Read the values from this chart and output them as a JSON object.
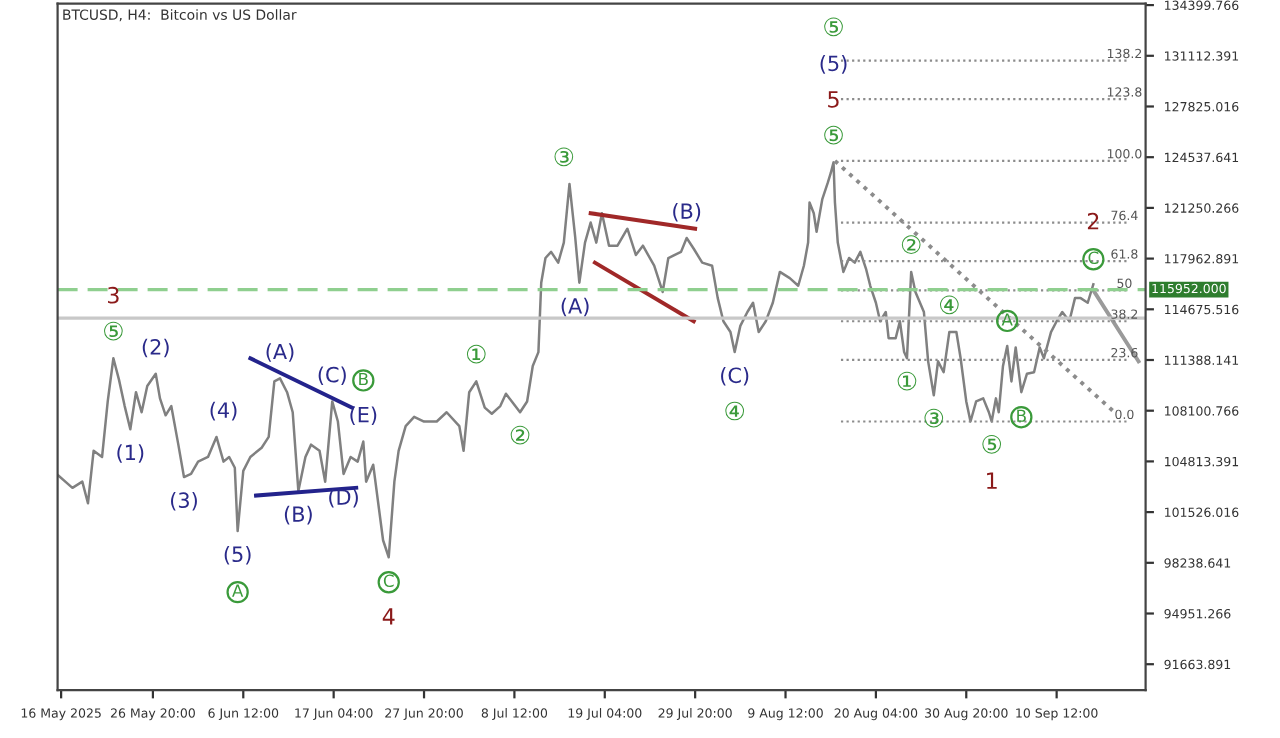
{
  "chart_data": {
    "type": "line",
    "title": "BTCUSD, H4:  Bitcoin vs US Dollar",
    "xlim": [
      "2025-05-15T14:00",
      "2025-09-21T00:00"
    ],
    "xticks": [
      {
        "value": "2025-05-16T00:00",
        "label": "16 May 2025"
      },
      {
        "value": "2025-05-26T20:00",
        "label": "26 May 20:00"
      },
      {
        "value": "2025-06-06T12:00",
        "label": "6 Jun 12:00"
      },
      {
        "value": "2025-06-17T04:00",
        "label": "17 Jun 04:00"
      },
      {
        "value": "2025-06-27T20:00",
        "label": "27 Jun 20:00"
      },
      {
        "value": "2025-07-08T12:00",
        "label": "8 Jul 12:00"
      },
      {
        "value": "2025-07-19T04:00",
        "label": "19 Jul 04:00"
      },
      {
        "value": "2025-07-29T20:00",
        "label": "29 Jul 20:00"
      },
      {
        "value": "2025-08-09T12:00",
        "label": "9 Aug 12:00"
      },
      {
        "value": "2025-08-20T04:00",
        "label": "20 Aug 04:00"
      },
      {
        "value": "2025-08-30T20:00",
        "label": "30 Aug 20:00"
      },
      {
        "value": "2025-09-10T12:00",
        "label": "10 Sep 12:00"
      }
    ],
    "ylim": [
      89990,
      134490
    ],
    "yticks": [
      134399.766,
      131112.391,
      127825.016,
      124537.641,
      121250.266,
      117962.891,
      114675.516,
      111388.141,
      108100.766,
      104813.391,
      101526.016,
      98238.641,
      94951.266,
      91663.891
    ],
    "grid": false,
    "legend": false,
    "marker": "none",
    "series": [
      {
        "color": "#808080",
        "line_style": "solid",
        "x": [
          "2025-05-15T16:00",
          "2025-05-17T08:00",
          "2025-05-18T12:00",
          "2025-05-19T04:00",
          "2025-05-19T20:00",
          "2025-05-20T20:00",
          "2025-05-21T12:00",
          "2025-05-22T04:00",
          "2025-05-22T20:00",
          "2025-05-23T12:00",
          "2025-05-24T04:00",
          "2025-05-24T20:00",
          "2025-05-25T12:00",
          "2025-05-26T04:00",
          "2025-05-27T04:00",
          "2025-05-27T16:00",
          "2025-05-28T08:00",
          "2025-05-29T00:00",
          "2025-05-29T20:00",
          "2025-05-30T12:00",
          "2025-05-31T08:00",
          "2025-06-01T04:00",
          "2025-06-02T08:00",
          "2025-06-03T08:00",
          "2025-06-04T04:00",
          "2025-06-04T20:00",
          "2025-06-05T12:00",
          "2025-06-05T20:00",
          "2025-06-06T12:00",
          "2025-06-07T08:00",
          "2025-06-08T16:00",
          "2025-06-09T12:00",
          "2025-06-10T04:00",
          "2025-06-10T20:00",
          "2025-06-11T16:00",
          "2025-06-12T08:00",
          "2025-06-13T00:00",
          "2025-06-13T20:00",
          "2025-06-14T12:00",
          "2025-06-15T12:00",
          "2025-06-16T04:00",
          "2025-06-17T00:00",
          "2025-06-17T16:00",
          "2025-06-18T08:00",
          "2025-06-19T04:00",
          "2025-06-20T00:00",
          "2025-06-20T16:00",
          "2025-06-21T00:00",
          "2025-06-21T20:00",
          "2025-06-23T00:00",
          "2025-06-23T16:00",
          "2025-06-24T08:00",
          "2025-06-24T20:00",
          "2025-06-25T16:00",
          "2025-06-26T16:00",
          "2025-06-27T20:00",
          "2025-06-29T08:00",
          "2025-06-30T12:00",
          "2025-07-02T00:00",
          "2025-07-02T12:00",
          "2025-07-03T04:00",
          "2025-07-04T00:00",
          "2025-07-05T00:00",
          "2025-07-05T20:00",
          "2025-07-06T20:00",
          "2025-07-07T12:00",
          "2025-07-08T08:00",
          "2025-07-09T04:00",
          "2025-07-10T00:00",
          "2025-07-10T16:00",
          "2025-07-11T08:00",
          "2025-07-11T16:00",
          "2025-07-12T04:00",
          "2025-07-12T20:00",
          "2025-07-13T16:00",
          "2025-07-14T08:00",
          "2025-07-15T00:00",
          "2025-07-15T16:00",
          "2025-07-16T04:00",
          "2025-07-16T20:00",
          "2025-07-17T12:00",
          "2025-07-18T04:00",
          "2025-07-18T20:00",
          "2025-07-19T16:00",
          "2025-07-20T16:00",
          "2025-07-21T20:00",
          "2025-07-22T20:00",
          "2025-07-23T16:00",
          "2025-07-25T00:00",
          "2025-07-26T00:00",
          "2025-07-26T16:00",
          "2025-07-28T04:00",
          "2025-07-28T20:00",
          "2025-07-29T16:00",
          "2025-07-30T16:00",
          "2025-07-31T20:00",
          "2025-08-01T12:00",
          "2025-08-02T04:00",
          "2025-08-03T00:00",
          "2025-08-03T12:00",
          "2025-08-04T04:00",
          "2025-08-05T00:00",
          "2025-08-05T16:00",
          "2025-08-06T08:00",
          "2025-08-07T04:00",
          "2025-08-08T00:00",
          "2025-08-08T20:00",
          "2025-08-10T00:00",
          "2025-08-11T00:00",
          "2025-08-11T16:00",
          "2025-08-12T04:00",
          "2025-08-12T08:00",
          "2025-08-12T20:00",
          "2025-08-13T04:00",
          "2025-08-13T20:00",
          "2025-08-14T12:00",
          "2025-08-14T20:00",
          "2025-08-15T04:00",
          "2025-08-15T08:00",
          "2025-08-15T16:00",
          "2025-08-16T08:00",
          "2025-08-17T00:00",
          "2025-08-17T16:00",
          "2025-08-18T08:00",
          "2025-08-19T00:00",
          "2025-08-19T12:00",
          "2025-08-20T04:00",
          "2025-08-20T16:00",
          "2025-08-21T08:00",
          "2025-08-21T16:00",
          "2025-08-22T12:00",
          "2025-08-23T00:00",
          "2025-08-23T12:00",
          "2025-08-23T20:00",
          "2025-08-24T08:00",
          "2025-08-24T20:00",
          "2025-08-25T20:00",
          "2025-08-26T08:00",
          "2025-08-27T00:00",
          "2025-08-27T12:00",
          "2025-08-28T04:00",
          "2025-08-28T20:00",
          "2025-08-29T16:00",
          "2025-08-30T04:00",
          "2025-08-30T20:00",
          "2025-08-31T08:00",
          "2025-09-01T00:00",
          "2025-09-01T20:00",
          "2025-09-02T12:00",
          "2025-09-02T20:00",
          "2025-09-03T08:00",
          "2025-09-03T16:00",
          "2025-09-04T04:00",
          "2025-09-04T16:00",
          "2025-09-05T04:00",
          "2025-09-05T16:00",
          "2025-09-06T08:00",
          "2025-09-07T00:00",
          "2025-09-07T20:00",
          "2025-09-08T12:00",
          "2025-09-09T00:00",
          "2025-09-09T20:00",
          "2025-09-10T12:00",
          "2025-09-11T04:00",
          "2025-09-12T00:00",
          "2025-09-12T16:00",
          "2025-09-13T08:00",
          "2025-09-14T04:00",
          "2025-09-14T20:00"
        ],
        "values": [
          103900,
          103100,
          103500,
          102100,
          105500,
          105100,
          108700,
          111500,
          110100,
          108400,
          106900,
          109300,
          108000,
          109700,
          110500,
          108900,
          107800,
          108400,
          105900,
          103800,
          104000,
          104800,
          105100,
          106400,
          104800,
          105100,
          104400,
          100300,
          104200,
          105100,
          105700,
          106400,
          110000,
          110200,
          109300,
          108000,
          102900,
          105100,
          105900,
          105500,
          103500,
          108700,
          107400,
          104000,
          105100,
          104800,
          106100,
          103500,
          104600,
          99700,
          98600,
          103500,
          105500,
          107100,
          107700,
          107400,
          107400,
          108000,
          107100,
          105500,
          109300,
          110000,
          108300,
          107900,
          108400,
          109200,
          108600,
          108000,
          108700,
          111000,
          111900,
          116400,
          118000,
          118400,
          117700,
          119000,
          122800,
          119400,
          116400,
          119000,
          120300,
          119000,
          120900,
          118800,
          118800,
          119900,
          118200,
          118800,
          117500,
          115800,
          118000,
          118400,
          119300,
          118600,
          117700,
          117500,
          115400,
          113900,
          113200,
          111900,
          113600,
          114500,
          115100,
          113200,
          113900,
          115100,
          117100,
          116700,
          116200,
          117500,
          119000,
          121600,
          120900,
          119700,
          121800,
          122900,
          123500,
          124200,
          121600,
          119000,
          117100,
          118000,
          117700,
          118400,
          117300,
          116200,
          115100,
          113900,
          114500,
          112800,
          112800,
          113900,
          111900,
          111500,
          117100,
          115800,
          114500,
          111300,
          109100,
          111300,
          110600,
          113200,
          113200,
          111500,
          108700,
          107400,
          108700,
          108900,
          108000,
          107400,
          108900,
          108000,
          111000,
          112300,
          110000,
          112200,
          109300,
          110500,
          110600,
          112200,
          111500,
          113200,
          113900,
          114500,
          113900,
          115400,
          115400,
          115100,
          116300
        ]
      },
      {
        "color": "#23238c",
        "line_style": "solid",
        "x": [
          "2025-06-07T08:00",
          "2025-06-19T08:00"
        ],
        "values": [
          111500,
          108300
        ]
      },
      {
        "color": "#23238c",
        "line_style": "solid",
        "x": [
          "2025-06-08T00:00",
          "2025-06-19T20:00"
        ],
        "values": [
          102600,
          103100
        ]
      },
      {
        "color": "#a02828",
        "line_style": "solid",
        "x": [
          "2025-07-17T12:00",
          "2025-07-29T20:00"
        ],
        "values": [
          120900,
          119900
        ]
      },
      {
        "color": "#a02828",
        "line_style": "solid",
        "x": [
          "2025-07-18T00:00",
          "2025-07-29T16:00"
        ],
        "values": [
          117700,
          113900
        ]
      },
      {
        "color": "#8c8c8c",
        "line_style": "dotted",
        "x": [
          "2025-08-15T08:00",
          "2025-09-17T08:00"
        ],
        "values": [
          124300,
          108000
        ]
      },
      {
        "color": "#9a9a9a",
        "line_style": "solid",
        "x": [
          "2025-09-14T20:00",
          "2025-09-20T04:00"
        ],
        "values": [
          115900,
          111300
        ]
      }
    ],
    "ref_lines": [
      {
        "axis": "y",
        "value": 130800,
        "color": "#8c8c8c",
        "line_style": "dotted"
      },
      {
        "axis": "y",
        "value": 128300,
        "color": "#8c8c8c",
        "line_style": "dotted"
      },
      {
        "axis": "y",
        "value": 124300,
        "color": "#8c8c8c",
        "line_style": "dotted"
      },
      {
        "axis": "y",
        "value": 120300,
        "color": "#8c8c8c",
        "line_style": "dotted"
      },
      {
        "axis": "y",
        "value": 117800,
        "color": "#8c8c8c",
        "line_style": "dotted"
      },
      {
        "axis": "y",
        "value": 115900,
        "color": "#8c8c8c",
        "line_style": "dotted"
      },
      {
        "axis": "y",
        "value": 113900,
        "color": "#8c8c8c",
        "line_style": "dotted"
      },
      {
        "axis": "y",
        "value": 111400,
        "color": "#8c8c8c",
        "line_style": "dotted"
      },
      {
        "axis": "y",
        "value": 107400,
        "color": "#8c8c8c",
        "line_style": "dotted"
      },
      {
        "axis": "y",
        "value": 115952,
        "label": "115952.000",
        "color": "#8fcf8f",
        "line_style": "dashed"
      },
      {
        "axis": "y",
        "value": 114100,
        "color": "#c8c8c8",
        "line_style": "solid"
      }
    ],
    "annotations": [
      {
        "text": "⑤",
        "x": "2025-05-22T04:00",
        "y": 111500
      },
      {
        "text": "3",
        "x": "2025-05-22T04:00",
        "y": 111500
      },
      {
        "text": "(2)",
        "x": "2025-05-27T04:00",
        "y": 110500
      },
      {
        "text": "(1)",
        "x": "2025-05-24T04:00",
        "y": 106900
      },
      {
        "text": "(3)",
        "x": "2025-05-30T12:00",
        "y": 103800
      },
      {
        "text": "(4)",
        "x": "2025-06-04T04:00",
        "y": 106400
      },
      {
        "text": "(5)",
        "x": "2025-06-05T20:00",
        "y": 100300
      },
      "A",
      {
        "text": "(A)",
        "x": "2025-06-10T20:00",
        "y": 110200
      },
      {
        "text": "(C)",
        "x": "2025-06-17T00:00",
        "y": 108700
      },
      {
        "text": "(E)",
        "x": "2025-06-20T16:00",
        "y": 106100
      },
      "B",
      {
        "text": "(B)",
        "x": "2025-06-13T00:00",
        "y": 102900
      },
      {
        "text": "(D)",
        "x": "2025-06-18T08:00",
        "y": 104000
      },
      {
        "text": "C",
        "x": "2025-06-23T16:00",
        "y": 98600
      },
      {
        "text": "4",
        "x": "2025-06-23T16:00",
        "y": 98600
      },
      {
        "text": "①",
        "x": "2025-07-04T00:00",
        "y": 110000
      },
      {
        "text": "②",
        "x": "2025-07-09T04:00",
        "y": 108000
      },
      {
        "text": "③",
        "x": "2025-07-14T08:00",
        "y": 122800
      },
      {
        "text": "(A)",
        "x": "2025-07-15T16:00",
        "y": 116400
      },
      {
        "text": "(B)",
        "x": "2025-07-28T20:00",
        "y": 119300
      },
      {
        "text": "(C)",
        "x": "2025-08-03T12:00",
        "y": 111900
      },
      {
        "text": "④",
        "x": "2025-08-03T12:00",
        "y": 111900
      },
      {
        "text": "⑤",
        "x": "2025-08-15T04:00",
        "y": 124200
      },
      {
        "text": "5",
        "x": "2025-08-15T04:00",
        "y": 124200
      },
      "(5)",
      "⑤",
      {
        "text": "②",
        "x": "2025-08-24T08:00",
        "y": 117100
      },
      {
        "text": "①",
        "x": "2025-08-23T20:00",
        "y": 111500
      },
      {
        "text": "④",
        "x": "2025-08-28T20:00",
        "y": 113200
      },
      {
        "text": "A",
        "x": "2025-09-04T16:00",
        "y": 112300
      },
      {
        "text": "③",
        "x": "2025-08-27T00:00",
        "y": 109100
      },
      {
        "text": "⑤",
        "x": "2025-09-02T20:00",
        "y": 107400
      },
      {
        "text": "1",
        "x": "2025-09-02T20:00",
        "y": 107400
      },
      {
        "text": "B",
        "x": "2025-09-06T08:00",
        "y": 109300
      },
      {
        "text": "C",
        "x": "2025-09-14T20:00",
        "y": 116300
      },
      {
        "text": "2",
        "x": "2025-09-14T20:00",
        "y": 116300
      },
      {
        "text": "138.2",
        "x": "2025-09-18T12:00",
        "y": 130800
      },
      {
        "text": "123.8",
        "x": "2025-09-18T12:00",
        "y": 128300
      },
      {
        "text": "100.0",
        "x": "2025-09-18T12:00",
        "y": 124300
      },
      {
        "text": "76.4",
        "x": "2025-09-18T12:00",
        "y": 120300
      },
      {
        "text": "61.8",
        "x": "2025-09-18T12:00",
        "y": 117800
      },
      {
        "text": "50",
        "x": "2025-09-18T12:00",
        "y": 115900
      },
      {
        "text": "38.2",
        "x": "2025-09-18T12:00",
        "y": 113900
      },
      {
        "text": "23.6",
        "x": "2025-09-18T12:00",
        "y": 111400
      },
      {
        "text": "0.0",
        "x": "2025-09-18T12:00",
        "y": 107400
      }
    ]
  }
}
